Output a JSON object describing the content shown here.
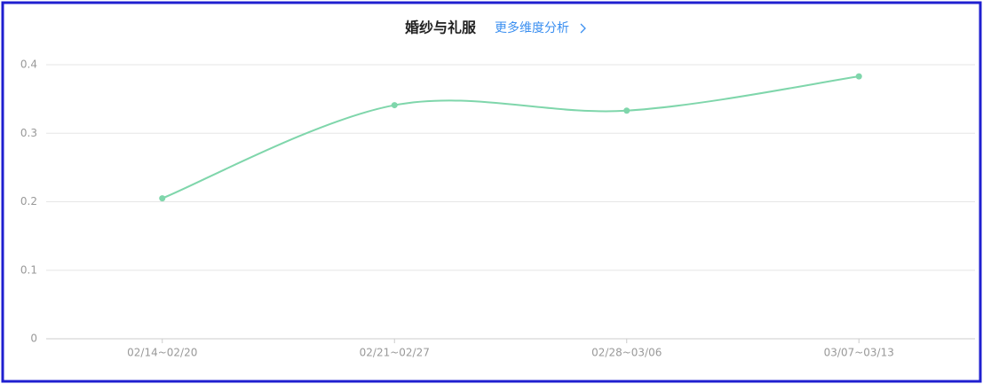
{
  "chart_data": {
    "type": "line",
    "title": "婚纱与礼服",
    "link": "更多维度分析",
    "categories": [
      "02/14~02/20",
      "02/21~02/27",
      "02/28~03/06",
      "03/07~03/13"
    ],
    "values": [
      0.205,
      0.341,
      0.333,
      0.383
    ],
    "color": "#7fd6ab",
    "ylim": [
      0,
      0.4
    ],
    "yticks": [
      0,
      0.1,
      0.2,
      0.3,
      0.4
    ],
    "grid": true,
    "smooth": true
  }
}
